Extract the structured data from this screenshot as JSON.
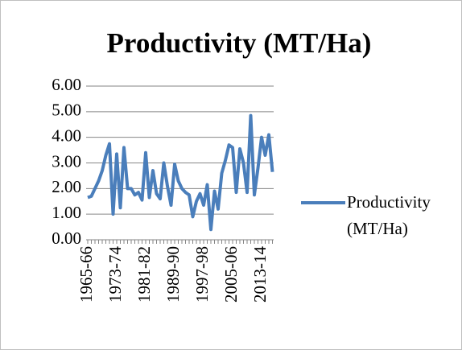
{
  "chart_data": {
    "type": "line",
    "title": "Productivity (MT/Ha)",
    "categories": [
      "1965-66",
      null,
      null,
      null,
      null,
      null,
      null,
      null,
      "1973-74",
      null,
      null,
      null,
      null,
      null,
      null,
      null,
      "1981-82",
      null,
      null,
      null,
      null,
      null,
      null,
      null,
      "1989-90",
      null,
      null,
      null,
      null,
      null,
      null,
      null,
      "1997-98",
      null,
      null,
      null,
      null,
      null,
      null,
      null,
      "2005-06",
      null,
      null,
      null,
      null,
      null,
      null,
      null,
      "2013-14",
      null,
      null,
      null
    ],
    "series": [
      {
        "name": "Productivity (MT/Ha)",
        "color": "#4a7ebb",
        "values": [
          1.65,
          1.7,
          2.0,
          2.3,
          2.7,
          3.3,
          3.75,
          1.0,
          3.35,
          1.25,
          3.6,
          2.0,
          2.0,
          1.75,
          1.85,
          1.55,
          3.4,
          1.65,
          2.7,
          1.8,
          1.6,
          3.0,
          2.1,
          1.35,
          2.95,
          2.3,
          2.0,
          1.85,
          1.75,
          0.9,
          1.5,
          1.8,
          1.35,
          2.15,
          0.4,
          1.9,
          1.2,
          2.6,
          3.1,
          3.7,
          3.6,
          1.85,
          3.55,
          3.0,
          1.85,
          4.85,
          1.75,
          2.8,
          4.0,
          3.3,
          4.1,
          2.65
        ]
      }
    ],
    "ylim": [
      0,
      6
    ],
    "yticks": [
      {
        "value": 0,
        "label": "0.00"
      },
      {
        "value": 1,
        "label": "1.00"
      },
      {
        "value": 2,
        "label": "2.00"
      },
      {
        "value": 3,
        "label": "3.00"
      },
      {
        "value": 4,
        "label": "4.00"
      },
      {
        "value": 5,
        "label": "5.00"
      },
      {
        "value": 6,
        "label": "6.00"
      }
    ],
    "grid": true,
    "legend": "right"
  }
}
